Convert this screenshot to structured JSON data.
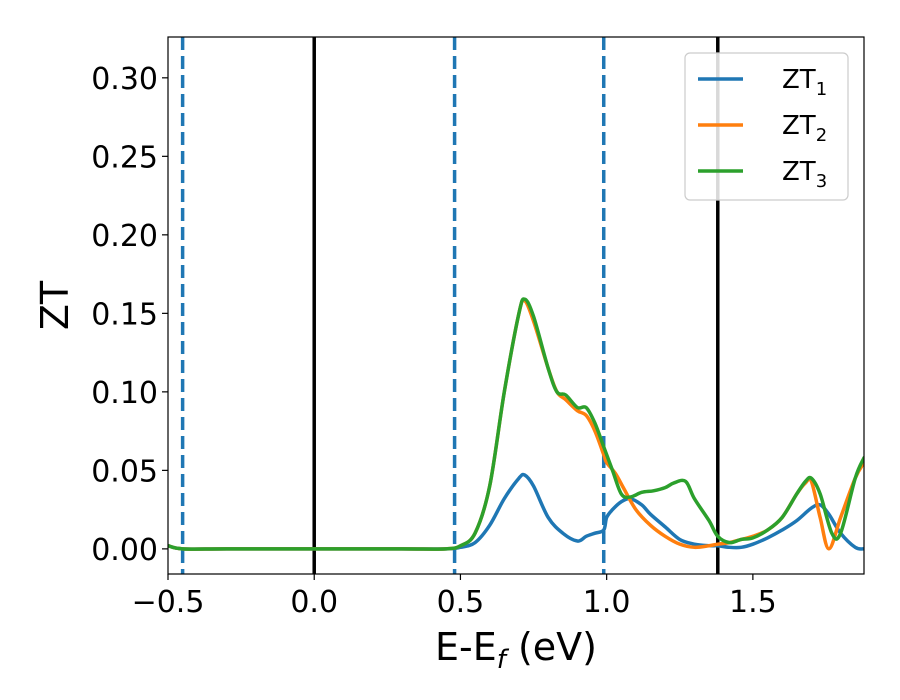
{
  "chart_data": {
    "type": "line",
    "xlabel": "E-E",
    "xlabel_sub": "f",
    "xlabel_unit": " (eV)",
    "ylabel": "ZT",
    "xlim": [
      -0.5,
      1.88
    ],
    "ylim": [
      -0.016,
      0.326
    ],
    "grid": false,
    "legend_position": "top-right",
    "xticks": [
      -0.5,
      0.0,
      0.5,
      1.0,
      1.5
    ],
    "xtick_labels": [
      "−0.5",
      "0.0",
      "0.5",
      "1.0",
      "1.5"
    ],
    "yticks": [
      0.0,
      0.05,
      0.1,
      0.15,
      0.2,
      0.25,
      0.3
    ],
    "ytick_labels": [
      "0.00",
      "0.05",
      "0.10",
      "0.15",
      "0.20",
      "0.25",
      "0.30"
    ],
    "vlines": [
      {
        "x": -0.45,
        "style": "dashed",
        "color": "#1f77b4"
      },
      {
        "x": 0.0,
        "style": "solid",
        "color": "#000000"
      },
      {
        "x": 0.48,
        "style": "dashed",
        "color": "#1f77b4"
      },
      {
        "x": 0.99,
        "style": "dashed",
        "color": "#1f77b4"
      },
      {
        "x": 1.38,
        "style": "solid",
        "color": "#000000"
      }
    ],
    "series": [
      {
        "name": "ZT",
        "name_sub": "1",
        "color": "#1f77b4",
        "x": [
          -0.5,
          -0.45,
          -0.3,
          0.0,
          0.3,
          0.45,
          0.5,
          0.55,
          0.6,
          0.65,
          0.7,
          0.72,
          0.75,
          0.8,
          0.85,
          0.9,
          0.93,
          0.96,
          0.99,
          1.0,
          1.02,
          1.05,
          1.08,
          1.12,
          1.15,
          1.2,
          1.25,
          1.3,
          1.35,
          1.38,
          1.42,
          1.46,
          1.5,
          1.55,
          1.6,
          1.65,
          1.7,
          1.73,
          1.76,
          1.8,
          1.85,
          1.88
        ],
        "y": [
          0.002,
          0.0,
          0.0,
          0.0,
          0.0,
          0.0,
          0.001,
          0.004,
          0.015,
          0.032,
          0.045,
          0.047,
          0.04,
          0.02,
          0.01,
          0.005,
          0.008,
          0.01,
          0.012,
          0.02,
          0.025,
          0.03,
          0.032,
          0.028,
          0.022,
          0.014,
          0.006,
          0.003,
          0.002,
          0.002,
          0.001,
          0.001,
          0.003,
          0.007,
          0.012,
          0.018,
          0.026,
          0.028,
          0.022,
          0.01,
          0.001,
          0.0
        ]
      },
      {
        "name": "ZT",
        "name_sub": "2",
        "color": "#ff7f0e",
        "x": [
          -0.5,
          -0.45,
          -0.3,
          0.0,
          0.3,
          0.45,
          0.5,
          0.55,
          0.6,
          0.65,
          0.7,
          0.72,
          0.75,
          0.8,
          0.83,
          0.86,
          0.9,
          0.93,
          0.96,
          0.99,
          1.0,
          1.03,
          1.06,
          1.1,
          1.15,
          1.2,
          1.25,
          1.3,
          1.35,
          1.38,
          1.42,
          1.46,
          1.5,
          1.55,
          1.6,
          1.65,
          1.68,
          1.7,
          1.73,
          1.76,
          1.8,
          1.85,
          1.88
        ],
        "y": [
          0.002,
          0.0,
          0.0,
          0.0,
          0.0,
          0.0,
          0.002,
          0.01,
          0.04,
          0.1,
          0.15,
          0.158,
          0.145,
          0.115,
          0.1,
          0.095,
          0.088,
          0.085,
          0.075,
          0.06,
          0.055,
          0.048,
          0.038,
          0.025,
          0.015,
          0.008,
          0.003,
          0.001,
          0.002,
          0.003,
          0.004,
          0.006,
          0.008,
          0.012,
          0.02,
          0.035,
          0.042,
          0.043,
          0.02,
          0.0,
          0.02,
          0.045,
          0.055
        ]
      },
      {
        "name": "ZT",
        "name_sub": "3",
        "color": "#2ca02c",
        "x": [
          -0.5,
          -0.45,
          -0.3,
          0.0,
          0.3,
          0.45,
          0.5,
          0.55,
          0.6,
          0.65,
          0.7,
          0.72,
          0.75,
          0.8,
          0.83,
          0.86,
          0.9,
          0.93,
          0.96,
          0.99,
          1.02,
          1.05,
          1.08,
          1.12,
          1.16,
          1.2,
          1.23,
          1.27,
          1.3,
          1.35,
          1.38,
          1.42,
          1.46,
          1.5,
          1.55,
          1.6,
          1.65,
          1.68,
          1.7,
          1.73,
          1.77,
          1.8,
          1.85,
          1.88
        ],
        "y": [
          0.002,
          0.0,
          0.0,
          0.0,
          0.0,
          0.0,
          0.002,
          0.01,
          0.04,
          0.1,
          0.15,
          0.159,
          0.148,
          0.115,
          0.1,
          0.098,
          0.09,
          0.09,
          0.08,
          0.065,
          0.05,
          0.035,
          0.033,
          0.036,
          0.037,
          0.039,
          0.042,
          0.043,
          0.032,
          0.018,
          0.008,
          0.004,
          0.006,
          0.007,
          0.012,
          0.02,
          0.035,
          0.043,
          0.045,
          0.035,
          0.01,
          0.01,
          0.045,
          0.058
        ]
      }
    ]
  }
}
